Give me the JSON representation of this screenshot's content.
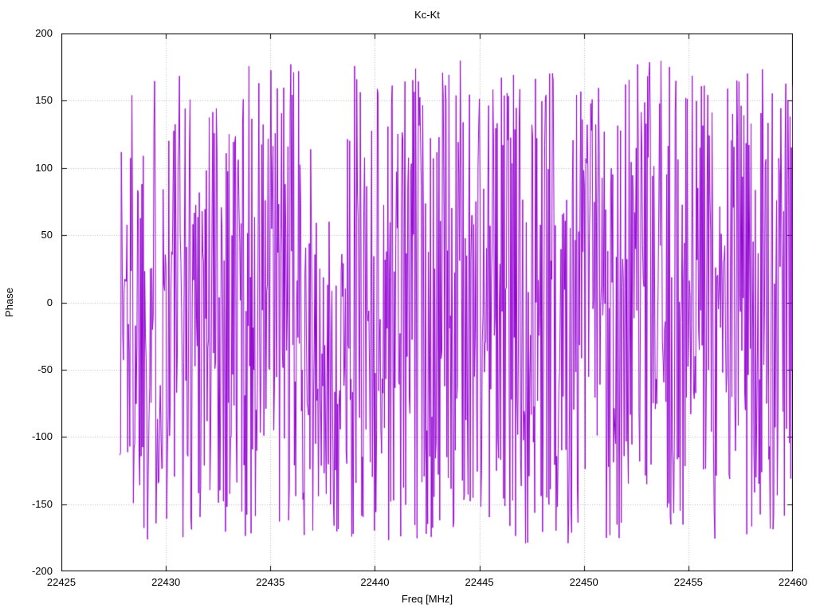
{
  "chart_data": {
    "type": "line",
    "title": "Kc-Kt",
    "xlabel": "Freq [MHz]",
    "ylabel": "Phase",
    "xlim": [
      22425,
      22460
    ],
    "ylim": [
      -200,
      200
    ],
    "x_ticks": [
      22425,
      22430,
      22435,
      22440,
      22445,
      22450,
      22455,
      22460
    ],
    "y_ticks": [
      -200,
      -150,
      -100,
      -50,
      0,
      50,
      100,
      150,
      200
    ],
    "grid": true,
    "grid_style": "dotted",
    "grid_color": "#b8b8b8",
    "frame_color": "#000000",
    "legend": "none",
    "series": [
      {
        "name": "phase",
        "color": "#9400d3",
        "line_width": 1,
        "data_spec": {
          "description": "wrapped interferometric phase noise, uniformly distributed in [-180, 180] deg, drawn as a connected line; no data before 22427.8 MHz",
          "x_start": 22427.8,
          "x_end": 22460.0,
          "n_points": 950,
          "y_min": -180,
          "y_max": 180,
          "seed": 1337,
          "quiet_zones": [
            {
              "x1": 22437.0,
              "x2": 22438.55,
              "y_max": 60
            }
          ]
        }
      }
    ]
  }
}
